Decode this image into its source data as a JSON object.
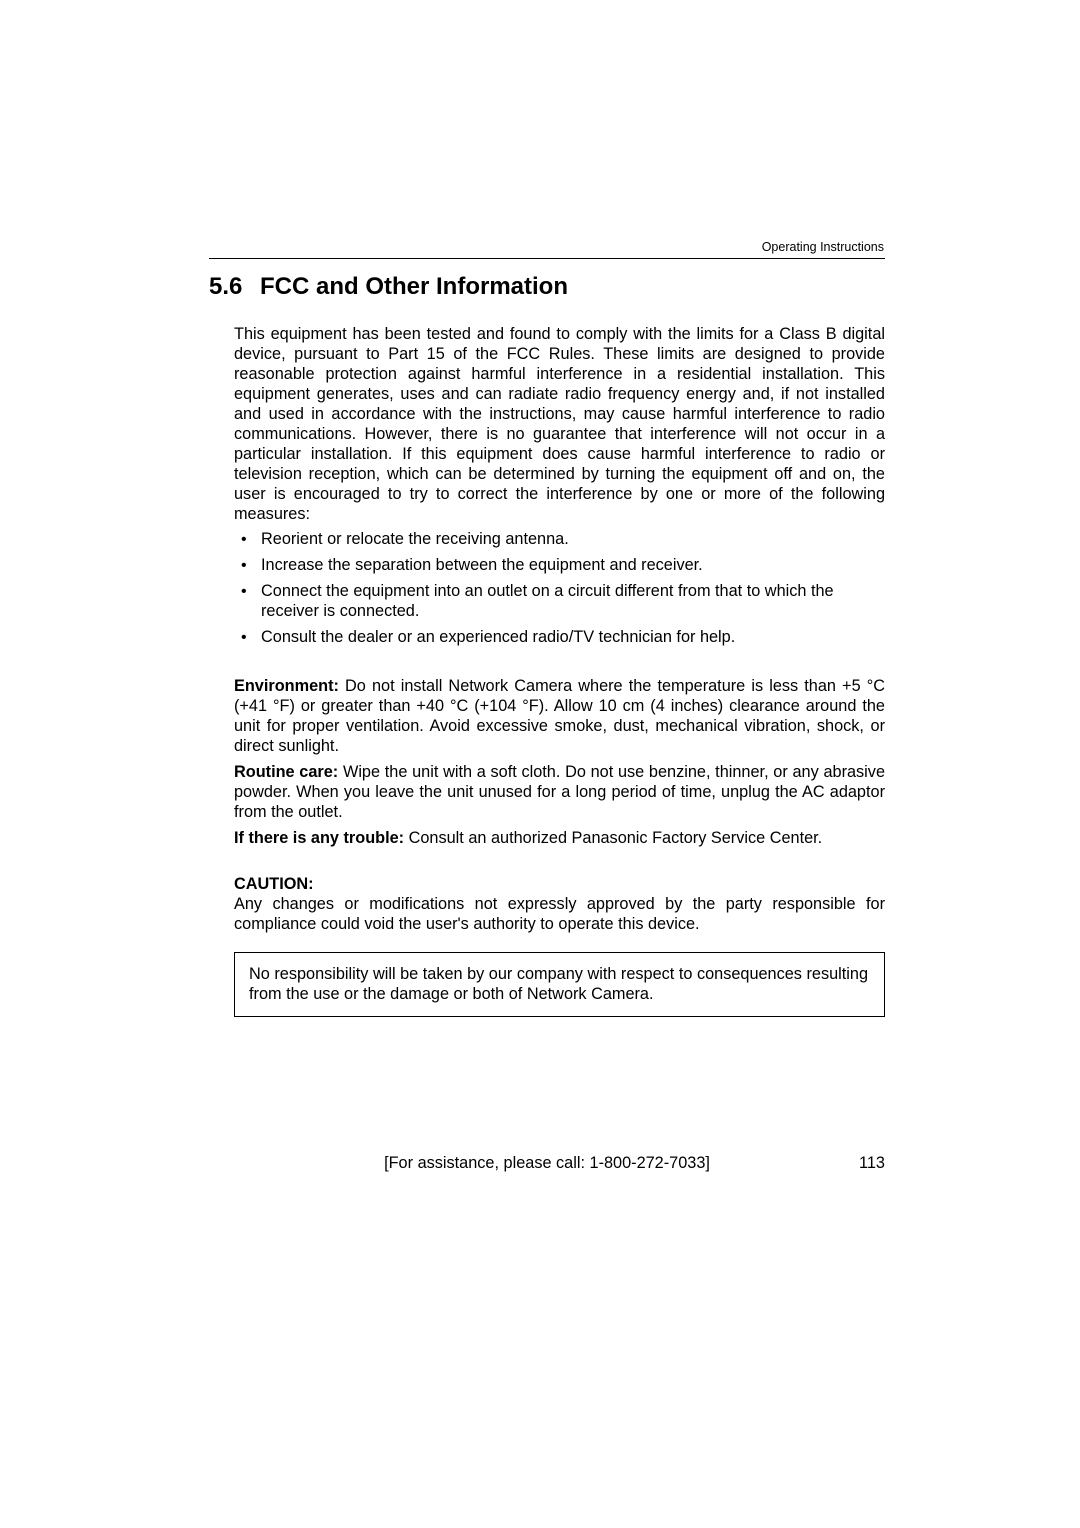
{
  "header": {
    "running_head": "Operating Instructions"
  },
  "section": {
    "number": "5.6",
    "title": "FCC and Other Information"
  },
  "body": {
    "intro": "This equipment has been tested and found to comply with the limits for a Class B digital device, pursuant to Part 15 of the FCC Rules. These limits are designed to provide reasonable protection against harmful interference in a residential installation. This equipment generates, uses and can radiate radio frequency energy and, if not installed and used in accordance with the instructions, may cause harmful interference to radio communications. However, there is no guarantee that interference will not occur in a particular installation. If this equipment does cause harmful interference to radio or television reception, which can be determined by turning the equipment off and on, the user is encouraged to try to correct the interference by one or more of the following measures:",
    "bullets": [
      "Reorient or relocate the receiving antenna.",
      "Increase the separation between the equipment and receiver.",
      "Connect the equipment into an outlet on a circuit different from that to which the receiver is connected.",
      "Consult the dealer or an experienced radio/TV technician for help."
    ],
    "env_label": "Environment:",
    "env_text": " Do not install Network Camera where the temperature is less than +5 °C (+41 °F) or greater than +40 °C (+104 °F). Allow 10 cm (4 inches) clearance around the unit for proper ventilation. Avoid excessive smoke, dust, mechanical vibration, shock, or direct sunlight.",
    "routine_label": "Routine care:",
    "routine_text": " Wipe the unit with a soft cloth. Do not use benzine, thinner, or any abrasive powder. When you leave the unit unused for a long period of time, unplug the AC adaptor from the outlet.",
    "trouble_label": "If there is any trouble:",
    "trouble_text": " Consult an authorized Panasonic Factory Service Center.",
    "caution_label": "CAUTION:",
    "caution_text": "Any changes or modifications not expressly approved by the party responsible for compliance could void the user's authority to operate this device.",
    "box_text": "No responsibility will be taken by our company with respect to consequences resulting from the use or the damage or both of Network Camera."
  },
  "footer": {
    "assist": "[For assistance, please call: 1-800-272-7033]",
    "page_number": "113"
  }
}
